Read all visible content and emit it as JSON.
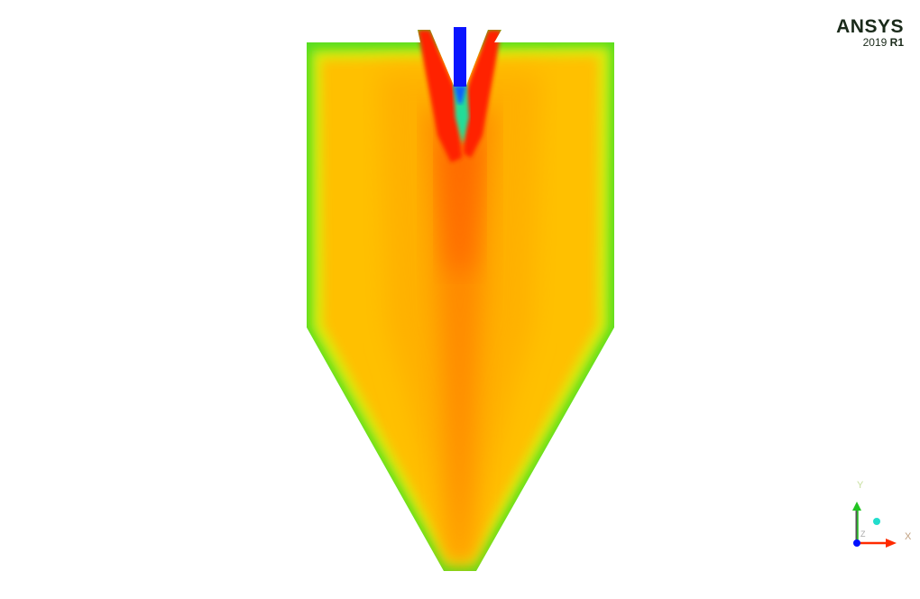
{
  "logo": {
    "brand": "ANSYS",
    "version_year": "2019",
    "version_release": "R1"
  },
  "axes": {
    "x_label": "X",
    "y_label": "Y",
    "z_label": "Z"
  },
  "colors": {
    "x_axis": "#ff2a00",
    "y_axis": "#22c422",
    "z_axis": "#0010ff",
    "jet": "#0a14ff",
    "wall": "#44dd22",
    "bulk": "#ffbb00",
    "core": "#ff8800",
    "inlet": "#ff2200"
  }
}
